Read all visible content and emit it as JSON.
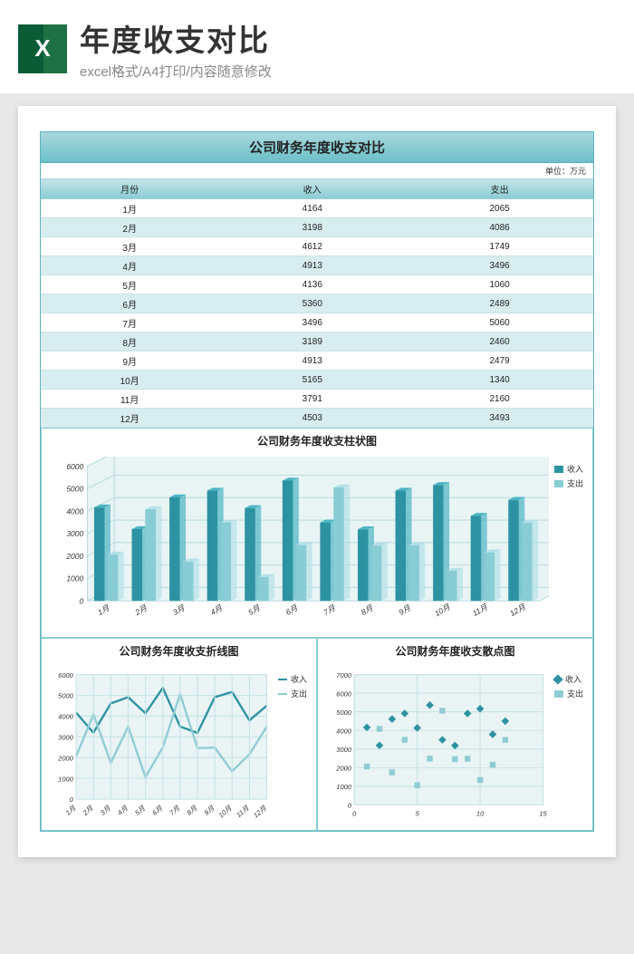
{
  "header": {
    "title": "年度收支对比",
    "subtitle": "excel格式/A4打印/内容随意修改",
    "icon_letter": "X"
  },
  "sheet": {
    "title": "公司财务年度收支对比",
    "unit_label": "单位：万元",
    "columns": [
      "月份",
      "收入",
      "支出"
    ],
    "months": [
      "1月",
      "2月",
      "3月",
      "4月",
      "5月",
      "6月",
      "7月",
      "8月",
      "9月",
      "10月",
      "11月",
      "12月"
    ],
    "income": [
      4164,
      3198,
      4612,
      4913,
      4136,
      5360,
      3496,
      3189,
      4913,
      5165,
      3791,
      4503
    ],
    "expense": [
      2065,
      4086,
      1749,
      3496,
      1060,
      2489,
      5060,
      2460,
      2479,
      1340,
      2160,
      3493
    ]
  },
  "bar_chart": {
    "title": "公司财务年度收支柱状图",
    "ylim": [
      0,
      6000
    ],
    "ytick_step": 1000,
    "income_color": "#2d93a3",
    "income_color_top": "#4cb5c4",
    "expense_color": "#88ccd5",
    "expense_color_top": "#b2e1e7",
    "grid_color": "#bcdde1",
    "bg_color": "#e9f4f5",
    "legend": [
      "收入",
      "支出"
    ]
  },
  "line_chart": {
    "title": "公司财务年度收支折线图",
    "ylim": [
      0,
      6000
    ],
    "ytick_step": 1000,
    "income_color": "#2d93a3",
    "expense_color": "#8fcdd5",
    "grid_color": "#c7e3e6",
    "bg_color": "#eaf4f5",
    "legend": [
      "收入",
      "支出"
    ]
  },
  "scatter_chart": {
    "title": "公司财务年度收支散点图",
    "xlim": [
      0,
      15
    ],
    "xtick_step": 5,
    "ylim": [
      0,
      7000
    ],
    "ytick_step": 1000,
    "income_color": "#2d93a3",
    "expense_color": "#8fcdd5",
    "grid_color": "#c7e3e6",
    "bg_color": "#eaf4f5",
    "legend": [
      "收入",
      "支出"
    ]
  }
}
